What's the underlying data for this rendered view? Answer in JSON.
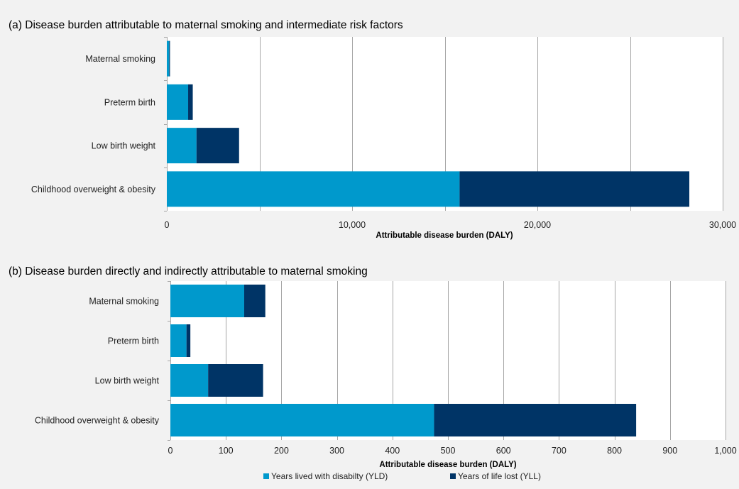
{
  "chart_data": [
    {
      "type": "bar",
      "orientation": "horizontal",
      "stacked": true,
      "title": "(a) Disease burden attributable to maternal smoking and intermediate risk factors",
      "xlabel": "Attributable disease burden (DALY)",
      "ylabel": "",
      "xlim": [
        0,
        30000
      ],
      "xticks": [
        0,
        10000,
        20000,
        30000
      ],
      "xtick_labels": [
        "0",
        "10,000",
        "20,000",
        "30,000"
      ],
      "grid_step": 5000,
      "categories": [
        "Maternal smoking",
        "Preterm birth",
        "Low birth weight",
        "Childhood overweight & obesity"
      ],
      "series": [
        {
          "name": "Years lived with disabilty (YLD)",
          "values": [
            130,
            1150,
            1600,
            15800
          ]
        },
        {
          "name": "Years of life lost (YLL)",
          "values": [
            40,
            250,
            2300,
            12400
          ]
        }
      ]
    },
    {
      "type": "bar",
      "orientation": "horizontal",
      "stacked": true,
      "title": "(b) Disease burden directly and indirectly attributable to maternal smoking",
      "xlabel": "Attributable disease burden (DALY)",
      "ylabel": "",
      "xlim": [
        0,
        1000
      ],
      "xticks": [
        0,
        100,
        200,
        300,
        400,
        500,
        600,
        700,
        800,
        900,
        1000
      ],
      "xtick_labels": [
        "0",
        "100",
        "200",
        "300",
        "400",
        "500",
        "600",
        "700",
        "800",
        "900",
        "1,000"
      ],
      "grid_step": 100,
      "categories": [
        "Maternal smoking",
        "Preterm birth",
        "Low birth weight",
        "Childhood overweight & obesity"
      ],
      "series": [
        {
          "name": "Years lived with disabilty (YLD)",
          "values": [
            133,
            29,
            68,
            475
          ]
        },
        {
          "name": "Years of life lost (YLL)",
          "values": [
            38,
            7,
            99,
            364
          ]
        }
      ]
    }
  ],
  "legend": {
    "placement": "bottom-center",
    "items": [
      {
        "label": "Years lived with disabilty (YLD)",
        "color": "#0099cc"
      },
      {
        "label": "Years of life lost (YLL)",
        "color": "#003466"
      }
    ]
  },
  "colors": {
    "yld": "#0099cc",
    "yll": "#003466",
    "grid": "#a6a6a6",
    "background": "#f2f2f2"
  }
}
